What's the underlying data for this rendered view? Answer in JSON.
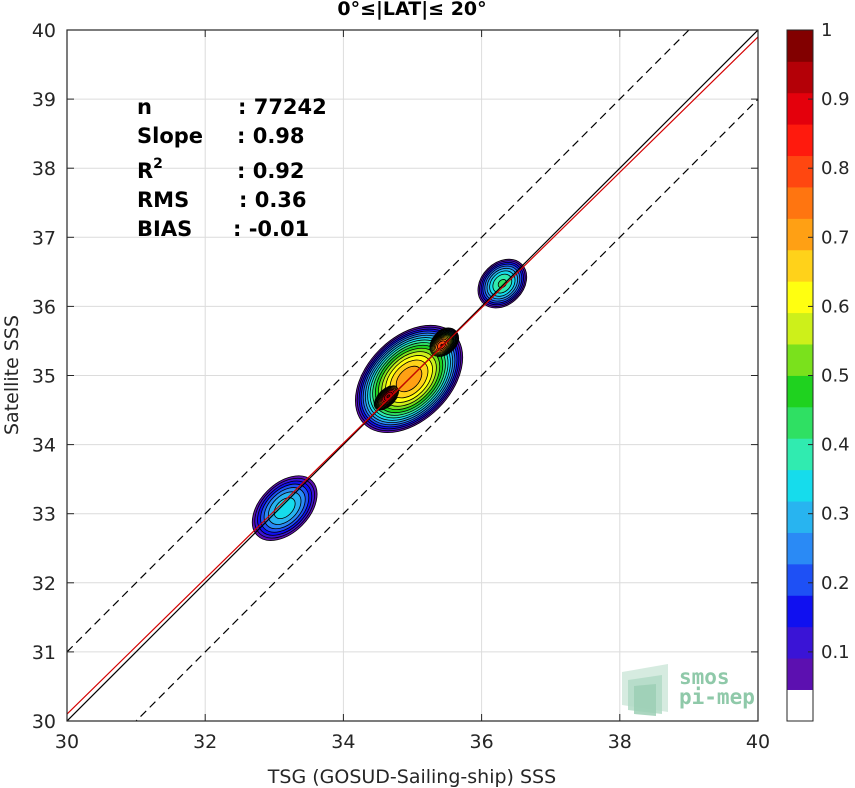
{
  "chart_data": {
    "type": "scatter",
    "title": "0°≤|LAT|≤ 20°",
    "xlabel": "TSG (GOSUD-Sailing-ship) SSS",
    "ylabel": "Satellite SSS",
    "xlim": [
      30,
      40
    ],
    "ylim": [
      30,
      40
    ],
    "xticks": [
      "30",
      "32",
      "34",
      "36",
      "38",
      "40"
    ],
    "yticks": [
      "30",
      "31",
      "32",
      "33",
      "34",
      "35",
      "36",
      "37",
      "38",
      "39",
      "40"
    ],
    "grid": true,
    "stats": [
      {
        "label": "n",
        "value": ": 77242"
      },
      {
        "label": "Slope",
        "value": ": 0.98"
      },
      {
        "label": "R",
        "sup": "2",
        "value": ": 0.92"
      },
      {
        "label": "RMS",
        "value": ": 0.36"
      },
      {
        "label": "BIAS",
        "value": ": -0.01"
      }
    ],
    "lines": [
      {
        "name": "identity",
        "color": "#000000",
        "style": "solid",
        "slope": 1.0,
        "intercept": 0.0
      },
      {
        "name": "fit",
        "color": "#d40000",
        "style": "solid",
        "slope": 0.98,
        "intercept": 0.7
      },
      {
        "name": "upper",
        "color": "#000000",
        "style": "dashed",
        "slope": 1.0,
        "intercept": 1.0
      },
      {
        "name": "lower",
        "color": "#000000",
        "style": "dashed",
        "slope": 1.0,
        "intercept": -1.0
      }
    ],
    "density_blobs": [
      {
        "x": 33.15,
        "y": 33.08,
        "rx": 0.6,
        "ry": 0.38,
        "peak": 0.35
      },
      {
        "x": 34.95,
        "y": 34.95,
        "rx": 0.95,
        "ry": 0.62,
        "peak": 0.72
      },
      {
        "x": 34.65,
        "y": 34.7,
        "rx": 0.32,
        "ry": 0.18,
        "peak": 0.96
      },
      {
        "x": 35.42,
        "y": 35.44,
        "rx": 0.3,
        "ry": 0.2,
        "peak": 0.82
      },
      {
        "x": 36.3,
        "y": 36.33,
        "rx": 0.42,
        "ry": 0.32,
        "peak": 0.42
      }
    ],
    "colorbar": {
      "min": 0,
      "max": 1,
      "ticks": [
        "0.1",
        "0.2",
        "0.3",
        "0.4",
        "0.5",
        "0.6",
        "0.7",
        "0.8",
        "0.9",
        "1"
      ],
      "colors": [
        "#ffffff",
        "#5c10b0",
        "#3a14d6",
        "#1010f0",
        "#1e50f5",
        "#2a8af5",
        "#28b4f0",
        "#16dcec",
        "#30ebb0",
        "#2fe063",
        "#1fd21f",
        "#7ae11c",
        "#cdf01a",
        "#ffff10",
        "#ffd21a",
        "#ffa014",
        "#ff7510",
        "#ff4710",
        "#ff1a0d",
        "#e4000c",
        "#b40007",
        "#820000"
      ]
    },
    "logo_text": [
      "smos",
      "pi-mep"
    ]
  }
}
